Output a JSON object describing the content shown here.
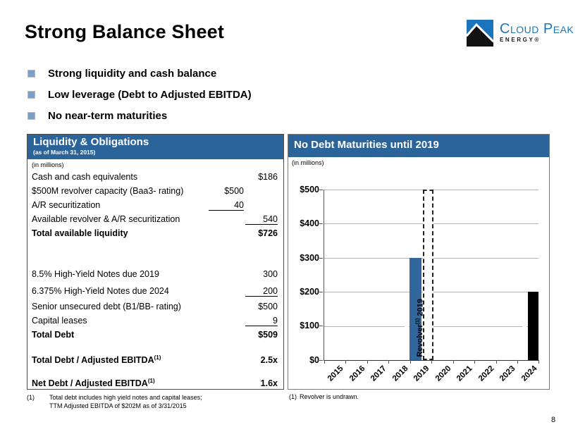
{
  "slide": {
    "title": "Strong Balance Sheet",
    "page_number": "8"
  },
  "logo": {
    "company": "Cloud Peak",
    "subtitle": "ENERGY®"
  },
  "bullets": [
    "Strong liquidity and cash balance",
    "Low leverage (Debt to Adjusted EBITDA)",
    "No near-term maturities"
  ],
  "liquidity": {
    "title": "Liquidity & Obligations",
    "subtitle": "(as of March 31, 2015)",
    "units_note": "(in millions)",
    "rows": [
      {
        "label": "Cash and cash equivalents",
        "col1": "",
        "col2": "$186"
      },
      {
        "label": "$500M revolver capacity (Baa3- rating)",
        "col1": "$500",
        "col2": ""
      },
      {
        "label": "A/R securitization",
        "col1": "40",
        "col2": ""
      },
      {
        "label": "Available revolver & A/R securitization",
        "col1": "",
        "col2": "540"
      },
      {
        "label": "Total available liquidity",
        "col1": "",
        "col2": "$726"
      },
      {
        "label": "8.5% High-Yield Notes due 2019",
        "col1": "",
        "col2": "300"
      },
      {
        "label": "6.375% High-Yield Notes due 2024",
        "col1": "",
        "col2": "200"
      },
      {
        "label": "Senior unsecured debt (B1/BB- rating)",
        "col1": "",
        "col2": "$500"
      },
      {
        "label": "Capital leases",
        "col1": "",
        "col2": "9"
      },
      {
        "label": "Total Debt",
        "col1": "",
        "col2": "$509"
      },
      {
        "label": "Total Debt / Adjusted EBITDA",
        "sup": "(1)",
        "col1": "",
        "col2": "2.5x"
      },
      {
        "label": "Net Debt / Adjusted EBITDA",
        "sup": "(1)",
        "col1": "",
        "col2": "1.6x"
      }
    ],
    "footnote": {
      "marker": "(1)",
      "line1": "Total debt includes high yield notes and capital leases;",
      "line2": "TTM Adjusted EBITDA of $202M as of 3/31/2015"
    }
  },
  "maturities": {
    "title": "No Debt Maturities until 2019",
    "units_note": "(in millions)",
    "footnote": {
      "marker": "(1)",
      "text": "Revolver is undrawn."
    }
  },
  "chart_data": {
    "type": "bar",
    "title": "No Debt Maturities until 2019",
    "units": "USD millions",
    "categories": [
      "2015",
      "2016",
      "2017",
      "2018",
      "2019",
      "2020",
      "2021",
      "2022",
      "2023",
      "2024"
    ],
    "series": [
      {
        "name": "2019 Bonds",
        "category": "2019",
        "value": 300,
        "style": "solid",
        "color": "#31679b",
        "bar_label": "2019 Bonds"
      },
      {
        "name": "Revolver",
        "category": "2019",
        "value": 500,
        "style": "dashed-outline",
        "color": "#ffffff",
        "bar_label_pre": "Revolver",
        "bar_label_sup": "(1)",
        "bar_label_post": "2019"
      },
      {
        "name": "2024 Bonds",
        "category": "2024",
        "value": 200,
        "style": "solid",
        "color": "#000000",
        "bar_label": "2024 Bonds"
      }
    ],
    "ylim": [
      0,
      500
    ],
    "ytick_labels": [
      "$0",
      "$100",
      "$200",
      "$300",
      "$400",
      "$500"
    ],
    "grid": true,
    "legend": false
  }
}
